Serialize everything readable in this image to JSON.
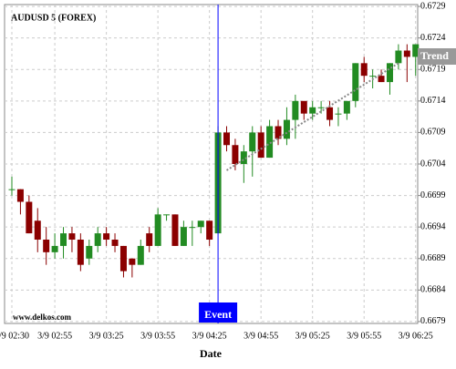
{
  "chart_data": {
    "type": "candlestick",
    "title": "AUDUSD 5 (FOREX)",
    "x_label": "Date",
    "watermark": "www.delkos.com",
    "categories": [
      "3/9 02:30",
      null,
      null,
      null,
      null,
      "3/9 02:55",
      null,
      null,
      null,
      null,
      null,
      "3/9 03:25",
      null,
      null,
      null,
      null,
      null,
      "3/9 03:55",
      null,
      null,
      null,
      null,
      null,
      "3/9 04:25",
      null,
      null,
      null,
      null,
      null,
      "3/9 04:55",
      null,
      null,
      null,
      null,
      null,
      "3/9 05:25",
      null,
      null,
      null,
      null,
      null,
      "3/9 05:55",
      null,
      null,
      null,
      null,
      null,
      "3/9 06:25"
    ],
    "open": [
      0.67,
      0.67,
      0.6698,
      0.6695,
      0.6692,
      0.669,
      0.6691,
      0.6693,
      0.6692,
      0.6689,
      0.6691,
      0.6693,
      0.6692,
      0.6691,
      0.6689,
      0.6688,
      0.6693,
      0.6691,
      0.6696,
      0.6696,
      0.6691,
      0.6694,
      0.6694,
      0.6695,
      0.6693,
      0.6709,
      0.6707,
      0.6704,
      0.6706,
      0.6709,
      0.6705,
      0.671,
      0.6708,
      0.6711,
      0.6714,
      0.6712,
      0.6713,
      0.6713,
      0.6712,
      0.6712,
      0.6714,
      0.672,
      0.6718,
      0.6718,
      0.6717,
      0.672,
      0.6722,
      0.6721
    ],
    "high": [
      0.6702,
      0.67,
      0.6699,
      0.6697,
      0.6694,
      0.6693,
      0.6694,
      0.6694,
      0.6693,
      0.6692,
      0.6694,
      0.6694,
      0.6693,
      0.6691,
      0.6689,
      0.6692,
      0.6694,
      0.6697,
      0.6696,
      0.6696,
      0.6695,
      0.6695,
      0.6695,
      0.6695,
      0.671,
      0.671,
      0.6708,
      0.6707,
      0.671,
      0.671,
      0.6711,
      0.6711,
      0.6713,
      0.6715,
      0.6714,
      0.6714,
      0.6714,
      0.6714,
      0.6713,
      0.6714,
      0.672,
      0.6721,
      0.6719,
      0.6719,
      0.672,
      0.6723,
      0.6723,
      0.6723
    ],
    "low": [
      0.6699,
      0.6696,
      0.6693,
      0.669,
      0.6688,
      0.6689,
      0.6689,
      0.669,
      0.6687,
      0.6688,
      0.669,
      0.6691,
      0.669,
      0.6686,
      0.6686,
      0.6688,
      0.669,
      0.6691,
      0.6695,
      0.6691,
      0.6691,
      0.6691,
      0.6693,
      0.6691,
      0.6693,
      0.6706,
      0.6703,
      0.6701,
      0.6702,
      0.6705,
      0.6705,
      0.6707,
      0.6707,
      0.6708,
      0.6711,
      0.6711,
      0.6712,
      0.671,
      0.671,
      0.6711,
      0.6713,
      0.6717,
      0.6716,
      0.6717,
      0.6715,
      0.6719,
      0.6717,
      0.6718
    ],
    "close": [
      0.67,
      0.6698,
      0.6693,
      0.6692,
      0.669,
      0.6691,
      0.6693,
      0.6692,
      0.6688,
      0.6691,
      0.6693,
      0.6692,
      0.6691,
      0.6687,
      0.6688,
      0.6691,
      0.6691,
      0.6696,
      0.6696,
      0.6691,
      0.6694,
      0.6694,
      0.6695,
      0.6692,
      0.6709,
      0.6707,
      0.6704,
      0.6706,
      0.6709,
      0.6705,
      0.671,
      0.6708,
      0.6711,
      0.6714,
      0.6712,
      0.6713,
      0.6713,
      0.6711,
      0.6712,
      0.6714,
      0.672,
      0.6718,
      0.6718,
      0.6717,
      0.672,
      0.6722,
      0.6721,
      0.6723
    ],
    "up_color": "#228b22",
    "down_color": "#8b0000",
    "ylim": [
      0.66787,
      0.67293
    ],
    "yticks": [
      0.6679,
      0.6684,
      0.6689,
      0.6694,
      0.6699,
      0.6704,
      0.6709,
      0.6714,
      0.6719,
      0.6724,
      0.6729
    ],
    "grid": true,
    "event": {
      "label": "Event",
      "index": 24,
      "color": "#0000ff"
    },
    "trend": {
      "label": "Trend",
      "start": [
        25,
        0.6703
      ],
      "end": [
        45,
        0.672
      ]
    }
  }
}
